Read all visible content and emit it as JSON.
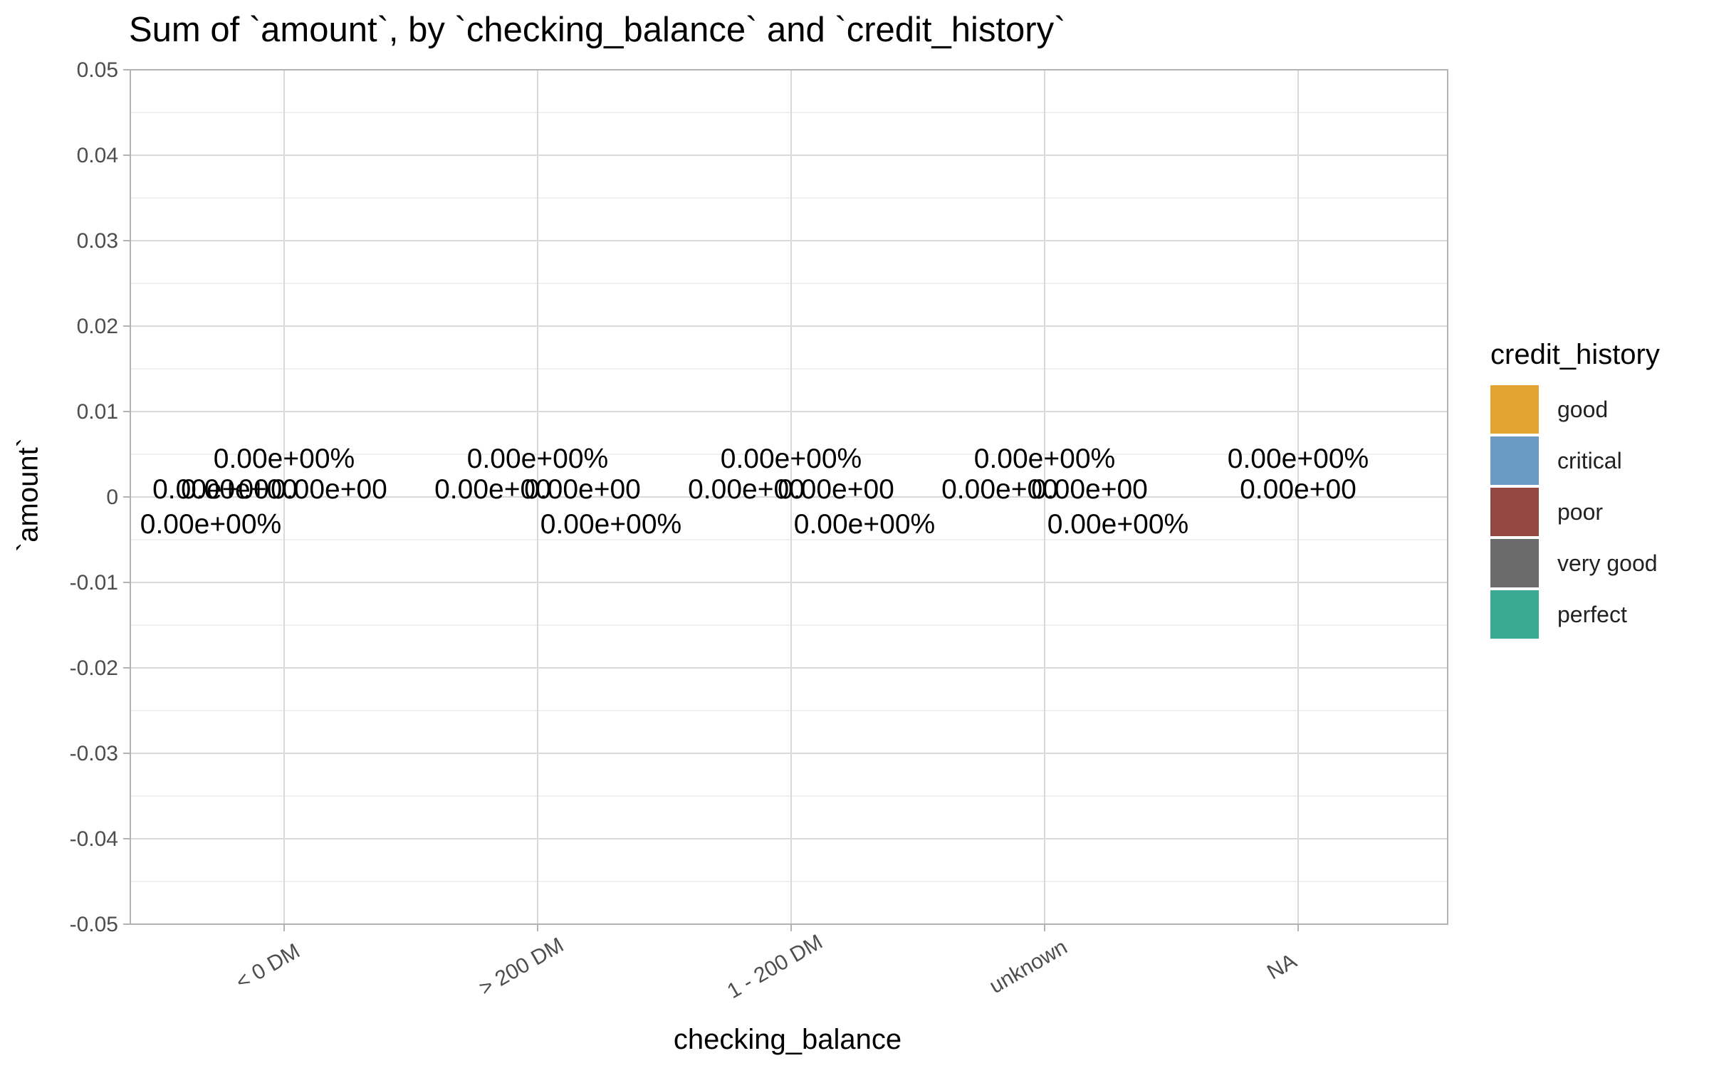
{
  "chart_data": {
    "type": "bar",
    "title": "Sum of `amount`, by `checking_balance` and `credit_history`",
    "xlabel": "checking_balance",
    "ylabel": "`amount`",
    "ylim": [
      -0.05,
      0.05
    ],
    "y_ticks": [
      "0.05",
      "0.04",
      "0.03",
      "0.02",
      "0.01",
      "0",
      "-0.01",
      "-0.02",
      "-0.03",
      "-0.04",
      "-0.05"
    ],
    "y_tick_values": [
      0.05,
      0.04,
      0.03,
      0.02,
      0.01,
      0,
      -0.01,
      -0.02,
      -0.03,
      -0.04,
      -0.05
    ],
    "categories": [
      "< 0 DM",
      "> 200 DM",
      "1 - 200 DM",
      "unknown",
      "NA"
    ],
    "legend_title": "credit_history",
    "legend_position": "right",
    "grid": true,
    "series": [
      {
        "name": "good",
        "color": "#E3A532",
        "values": [
          0,
          0,
          0,
          0,
          0
        ]
      },
      {
        "name": "critical",
        "color": "#6B9AC4",
        "values": [
          0,
          0,
          0,
          0,
          0
        ]
      },
      {
        "name": "poor",
        "color": "#944740",
        "values": [
          0,
          0,
          0,
          0,
          0
        ]
      },
      {
        "name": "very good",
        "color": "#6B6B6B",
        "values": [
          0,
          0,
          0,
          0,
          0
        ]
      },
      {
        "name": "perfect",
        "color": "#3BAA93",
        "values": [
          0,
          0,
          0,
          0,
          0
        ]
      }
    ],
    "data_labels": [
      {
        "category": "< 0 DM",
        "labels": [
          "0.00e+00%",
          "0.00e+00",
          "0.00e+00",
          "0.00e+00",
          "0.00e+00%"
        ]
      },
      {
        "category": "> 200 DM",
        "labels": [
          "0.00e+00%",
          "0.00e+00",
          "0.00e+00",
          "0.00e+00%"
        ]
      },
      {
        "category": "1 - 200 DM",
        "labels": [
          "0.00e+00%",
          "0.00e+00",
          "0.00e+00",
          "0.00e+00%"
        ]
      },
      {
        "category": "unknown",
        "labels": [
          "0.00e+00%",
          "0.00e+00",
          "0.00e+00",
          "0.00e+00%"
        ]
      },
      {
        "category": "NA",
        "labels": [
          "0.00e+00%",
          "0.00e+00"
        ]
      }
    ]
  }
}
